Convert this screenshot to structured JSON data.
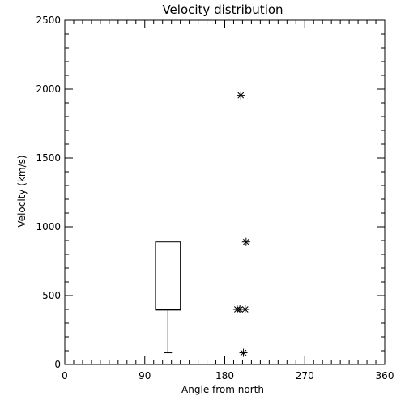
{
  "chart_data": {
    "type": "box",
    "title": "Velocity distribution",
    "xlabel": "Angle from north",
    "ylabel": "Velocity (km/s)",
    "xlim": [
      0,
      360
    ],
    "ylim": [
      0,
      2500
    ],
    "xticks": [
      0,
      90,
      180,
      270,
      360
    ],
    "xtick_labels": [
      "0",
      "90",
      "180",
      "270",
      "360"
    ],
    "yticks": [
      0,
      500,
      1000,
      1500,
      2000,
      2500
    ],
    "ytick_labels": [
      "0",
      "500",
      "1000",
      "1500",
      "2000",
      "2500"
    ],
    "x_minor_step": 10,
    "y_minor_step": 100,
    "grid": false,
    "box": {
      "x_left": 102,
      "x_right": 130,
      "whisker_x": 116,
      "q1": 395,
      "median": 400,
      "q3": 890,
      "whisker_low": 85,
      "whisker_high": 890
    },
    "points": [
      {
        "x": 198,
        "y": 1955
      },
      {
        "x": 204,
        "y": 890
      },
      {
        "x": 194,
        "y": 400
      },
      {
        "x": 197,
        "y": 400
      },
      {
        "x": 203,
        "y": 400
      },
      {
        "x": 201,
        "y": 85
      }
    ],
    "marker": "asterisk"
  }
}
